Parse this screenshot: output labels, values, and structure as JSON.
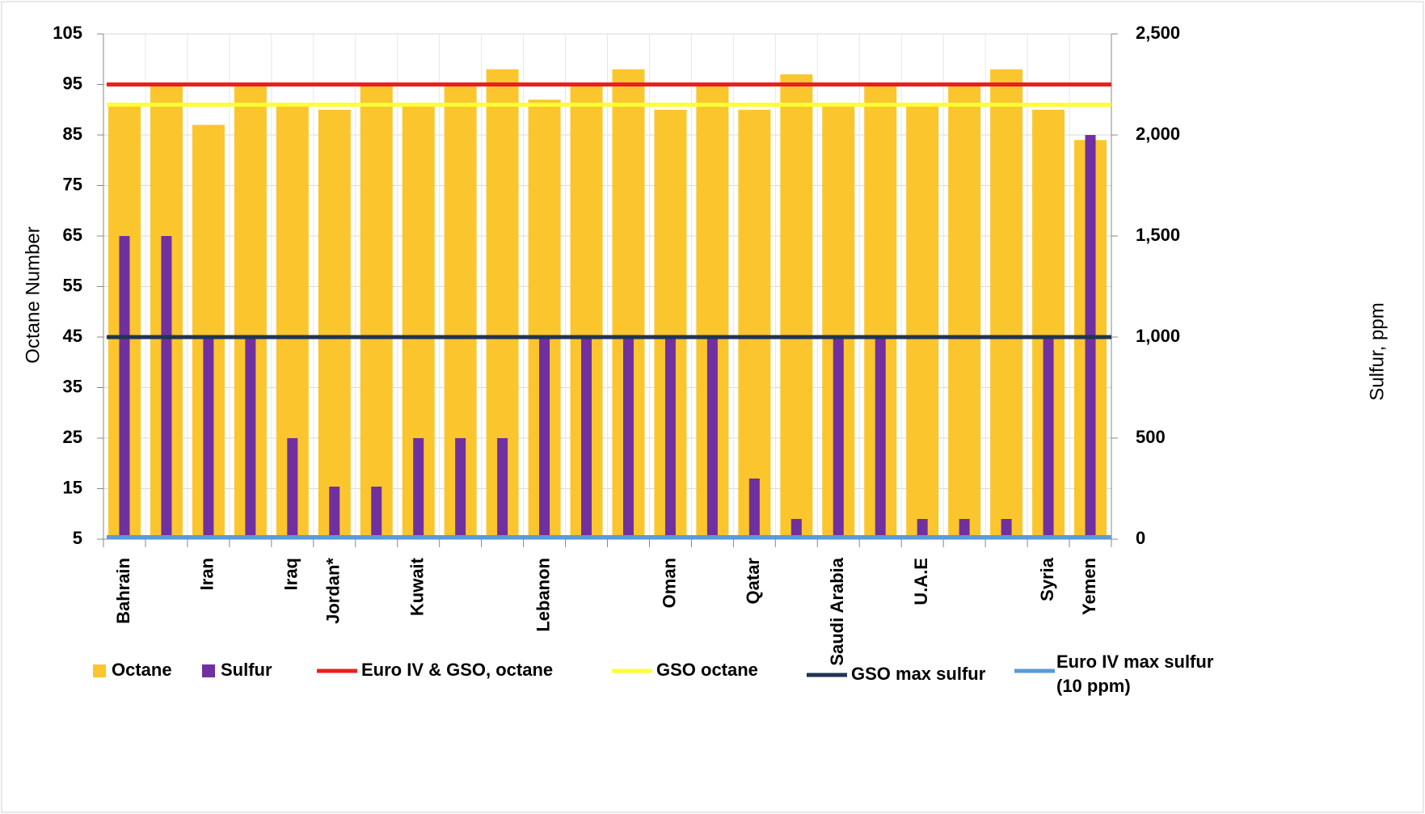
{
  "chart_data": {
    "type": "bar",
    "categories": [
      "Bahrain",
      null,
      "Iran",
      null,
      "Iraq",
      "Jordan*",
      null,
      "Kuwait",
      null,
      null,
      "Lebanon",
      null,
      null,
      "Oman",
      null,
      "Qatar",
      null,
      "Saudi Arabia",
      null,
      "U.A.E",
      null,
      null,
      "Syria",
      "Yemen"
    ],
    "series": [
      {
        "name": "Octane",
        "color": "#fbc52e",
        "values": [
          91,
          95,
          87,
          95,
          91,
          90,
          95,
          91,
          95,
          98,
          92,
          95,
          98,
          90,
          95,
          90,
          97,
          91,
          95,
          91,
          95,
          98,
          90,
          84
        ]
      },
      {
        "name": "Sulfur",
        "color": "#7030a0",
        "axis": "y2",
        "values": [
          1500,
          1500,
          1000,
          1000,
          500,
          260,
          260,
          500,
          500,
          500,
          1000,
          1000,
          1000,
          1000,
          1000,
          300,
          100,
          1000,
          1000,
          100,
          100,
          100,
          1000,
          2000
        ]
      }
    ],
    "reference_lines": [
      {
        "name": "Euro IV & GSO, octane",
        "color": "#e8201f",
        "value": 95
      },
      {
        "name": "GSO octane",
        "color": "#ffff33",
        "value": 91
      },
      {
        "name": "GSO max sulfur",
        "color": "#1f3552",
        "value": 1000,
        "axis": "y2"
      },
      {
        "name": "Euro IV max sulfur (10 ppm)",
        "color": "#5b9bd5",
        "value": 10,
        "axis": "y2"
      }
    ],
    "y_label": "Octane Number",
    "y2_label": "Sulfur, ppm",
    "ylim": [
      5,
      105
    ],
    "yticks": [
      5,
      15,
      25,
      35,
      45,
      55,
      65,
      75,
      85,
      95,
      105
    ],
    "y2lim": [
      0,
      2500
    ],
    "y2ticks": [
      0,
      {
        "value": 500,
        "label": "500"
      },
      {
        "value": 1000,
        "label": "1,000"
      },
      {
        "value": 1500,
        "label": "1,500"
      },
      {
        "value": 2000,
        "label": "2,000"
      },
      {
        "value": 2500,
        "label": "2,500"
      }
    ],
    "grid": true,
    "legend": "bottom"
  }
}
